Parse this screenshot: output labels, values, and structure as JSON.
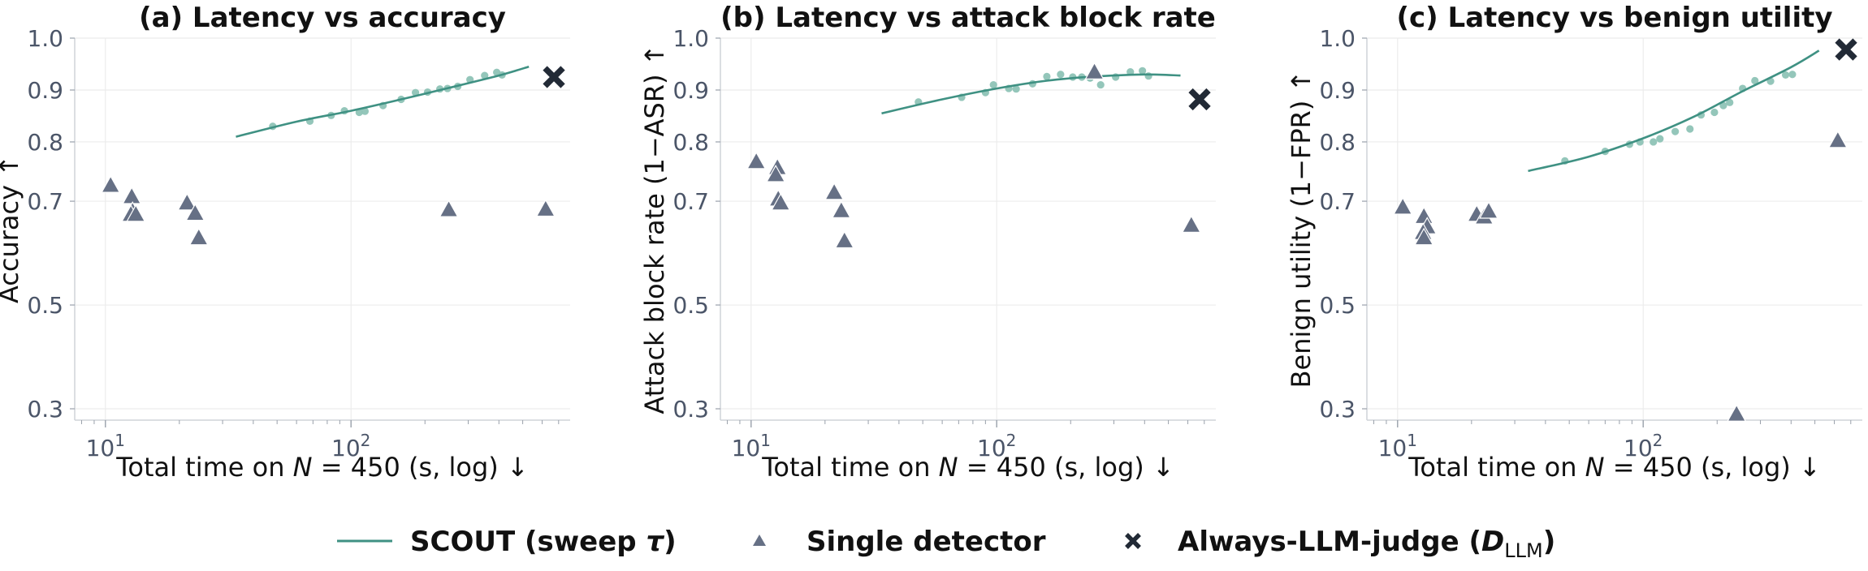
{
  "colors": {
    "scout_line": "#3f9183",
    "scout_points": "#8ec3b6",
    "single": "#667085",
    "always": "#222a36",
    "grid": "#ececec",
    "tick_text": "#4b5568"
  },
  "legend": [
    {
      "label": "SCOUT (sweep τ)",
      "marker": "line"
    },
    {
      "label": "Single detector",
      "marker": "triangle"
    },
    {
      "label": "Always-LLM-judge (D_LLM)",
      "marker": "cross"
    }
  ],
  "chart_data": [
    {
      "type": "scatter",
      "title": "(a) Latency vs accuracy",
      "xlabel": "Total time on N = 450 (s, log) ↓",
      "ylabel": "Accuracy ↑",
      "xscale": "log",
      "xlim": [
        7.5,
        780
      ],
      "ylim": [
        0.25,
        1.0
      ],
      "x_ticks": [
        "10^1",
        "10^2"
      ],
      "y_ticks": [
        "0.3",
        "0.5",
        "0.7",
        "0.8",
        "0.9",
        "1.0"
      ],
      "grid": true,
      "scout_points": [
        [
          48,
          0.83
        ],
        [
          68,
          0.84
        ],
        [
          83,
          0.851
        ],
        [
          94,
          0.86
        ],
        [
          108,
          0.857
        ],
        [
          114,
          0.859
        ],
        [
          135,
          0.87
        ],
        [
          160,
          0.882
        ],
        [
          183,
          0.895
        ],
        [
          205,
          0.896
        ],
        [
          230,
          0.902
        ],
        [
          247,
          0.903
        ],
        [
          272,
          0.907
        ],
        [
          305,
          0.92
        ],
        [
          350,
          0.928
        ],
        [
          392,
          0.934
        ],
        [
          412,
          0.929
        ]
      ],
      "scout_curve": [
        [
          34,
          0.81
        ],
        [
          60,
          0.839
        ],
        [
          100,
          0.86
        ],
        [
          160,
          0.882
        ],
        [
          250,
          0.904
        ],
        [
          400,
          0.928
        ],
        [
          530,
          0.945
        ]
      ],
      "single_detector": [
        [
          10.5,
          0.727
        ],
        [
          12.8,
          0.708
        ],
        [
          12.9,
          0.681
        ],
        [
          12.7,
          0.675
        ],
        [
          13.3,
          0.675
        ],
        [
          21.5,
          0.697
        ],
        [
          23.2,
          0.677
        ],
        [
          24.0,
          0.63
        ],
        [
          250,
          0.684
        ],
        [
          620,
          0.685
        ]
      ],
      "always_llm_judge": [
        [
          670,
          0.925
        ]
      ]
    },
    {
      "type": "scatter",
      "title": "(b) Latency vs attack block rate",
      "xlabel": "Total time on N = 450 (s, log) ↓",
      "ylabel": "Attack block rate (1−ASR) ↑",
      "xscale": "log",
      "xlim": [
        7.5,
        780
      ],
      "ylim": [
        0.25,
        1.0
      ],
      "x_ticks": [
        "10^1",
        "10^2"
      ],
      "y_ticks": [
        "0.3",
        "0.5",
        "0.7",
        "0.8",
        "0.9",
        "1.0"
      ],
      "grid": true,
      "scout_points": [
        [
          48,
          0.877
        ],
        [
          72,
          0.886
        ],
        [
          90,
          0.895
        ],
        [
          97,
          0.91
        ],
        [
          112,
          0.903
        ],
        [
          120,
          0.902
        ],
        [
          140,
          0.912
        ],
        [
          160,
          0.926
        ],
        [
          182,
          0.93
        ],
        [
          204,
          0.925
        ],
        [
          222,
          0.925
        ],
        [
          240,
          0.923
        ],
        [
          265,
          0.91
        ],
        [
          305,
          0.925
        ],
        [
          350,
          0.935
        ],
        [
          392,
          0.937
        ],
        [
          415,
          0.927
        ]
      ],
      "scout_curve": [
        [
          34,
          0.855
        ],
        [
          60,
          0.882
        ],
        [
          100,
          0.903
        ],
        [
          160,
          0.918
        ],
        [
          250,
          0.926
        ],
        [
          400,
          0.93
        ],
        [
          560,
          0.928
        ]
      ],
      "single_detector": [
        [
          10.5,
          0.767
        ],
        [
          12.8,
          0.757
        ],
        [
          12.6,
          0.745
        ],
        [
          12.9,
          0.704
        ],
        [
          13.2,
          0.697
        ],
        [
          21.8,
          0.715
        ],
        [
          23.3,
          0.682
        ],
        [
          24.0,
          0.624
        ],
        [
          250,
          0.935
        ],
        [
          620,
          0.654
        ]
      ],
      "always_llm_judge": [
        [
          670,
          0.882
        ]
      ]
    },
    {
      "type": "scatter",
      "title": "(c) Latency vs benign utility",
      "xlabel": "Total time on N = 450 (s, log) ↓",
      "ylabel": "Benign utility (1−FPR) ↑",
      "xscale": "log",
      "xlim": [
        7.5,
        780
      ],
      "ylim": [
        0.25,
        1.0
      ],
      "x_ticks": [
        "10^1",
        "10^2"
      ],
      "y_ticks": [
        "0.3",
        "0.5",
        "0.7",
        "0.8",
        "0.9",
        "1.0"
      ],
      "grid": true,
      "scout_points": [
        [
          48,
          0.768
        ],
        [
          70,
          0.784
        ],
        [
          88,
          0.796
        ],
        [
          97,
          0.8
        ],
        [
          110,
          0.8
        ],
        [
          117,
          0.806
        ],
        [
          135,
          0.82
        ],
        [
          155,
          0.825
        ],
        [
          172,
          0.852
        ],
        [
          195,
          0.857
        ],
        [
          212,
          0.87
        ],
        [
          225,
          0.876
        ],
        [
          254,
          0.903
        ],
        [
          285,
          0.918
        ],
        [
          330,
          0.917
        ],
        [
          380,
          0.929
        ],
        [
          405,
          0.93
        ]
      ],
      "scout_curve": [
        [
          34,
          0.751
        ],
        [
          60,
          0.775
        ],
        [
          100,
          0.807
        ],
        [
          160,
          0.848
        ],
        [
          250,
          0.896
        ],
        [
          400,
          0.944
        ],
        [
          520,
          0.976
        ]
      ],
      "single_detector": [
        [
          10.5,
          0.689
        ],
        [
          12.8,
          0.671
        ],
        [
          13.2,
          0.651
        ],
        [
          12.7,
          0.64
        ],
        [
          12.8,
          0.63
        ],
        [
          21.0,
          0.675
        ],
        [
          22.5,
          0.67
        ],
        [
          23.5,
          0.681
        ],
        [
          240,
          0.29
        ],
        [
          620,
          0.803
        ]
      ],
      "always_llm_judge": [
        [
          670,
          0.978
        ]
      ]
    }
  ]
}
